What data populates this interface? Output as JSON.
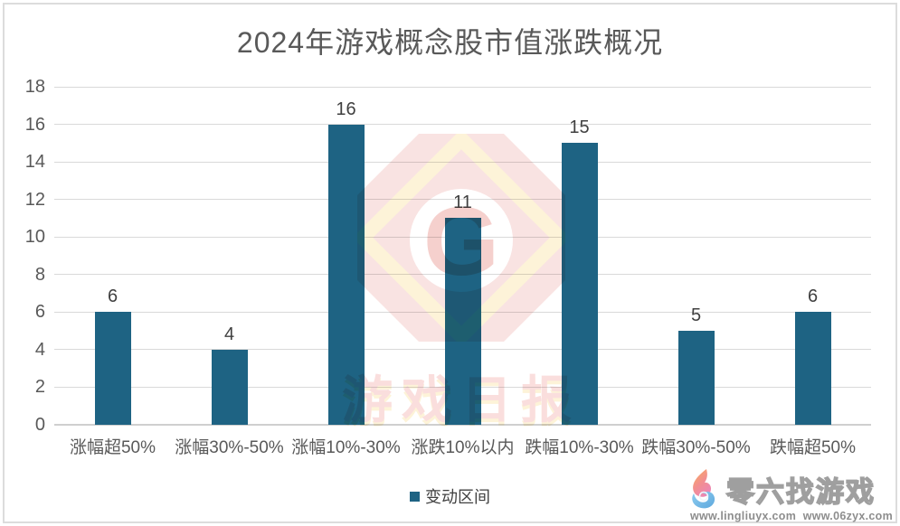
{
  "title": "2024年游戏概念股市值涨跌概况",
  "chart_data": {
    "type": "bar",
    "title": "2024年游戏概念股市值涨跌概况",
    "categories": [
      "涨幅超50%",
      "涨幅30%-50%",
      "涨幅10%-30%",
      "涨跌10%以内",
      "跌幅10%-30%",
      "跌幅30%-50%",
      "跌幅超50%"
    ],
    "values": [
      6,
      4,
      16,
      11,
      15,
      5,
      6
    ],
    "series_name": "变动区间",
    "xlabel": "",
    "ylabel": "",
    "ylim": [
      0,
      18
    ],
    "yticks": [
      0,
      2,
      4,
      6,
      8,
      10,
      12,
      14,
      16,
      18
    ],
    "grid": true,
    "legend_position": "bottom",
    "data_labels": [
      "6",
      "4",
      "16",
      "11",
      "15",
      "5",
      "6"
    ]
  },
  "legend": {
    "label": "变动区间"
  },
  "colors": {
    "bar": "#1e6383",
    "gridline": "#d9d9d9",
    "axis_text": "#595959",
    "data_label": "#404040",
    "frame": "#dcdcdc",
    "watermark_pink": "#f9e3e2",
    "watermark_yellow": "#fdf3d8",
    "watermark_g": "#f5d0cd",
    "watermark_text": "#fadedd"
  },
  "watermark_center": {
    "letter": "G",
    "text": "游戏日报"
  },
  "watermark_corner": {
    "logo": "flame-swirl-logo",
    "brand": "零六找游戏",
    "url_left": "www.lingliuyx.com",
    "url_right": "www.06zyx.com"
  }
}
